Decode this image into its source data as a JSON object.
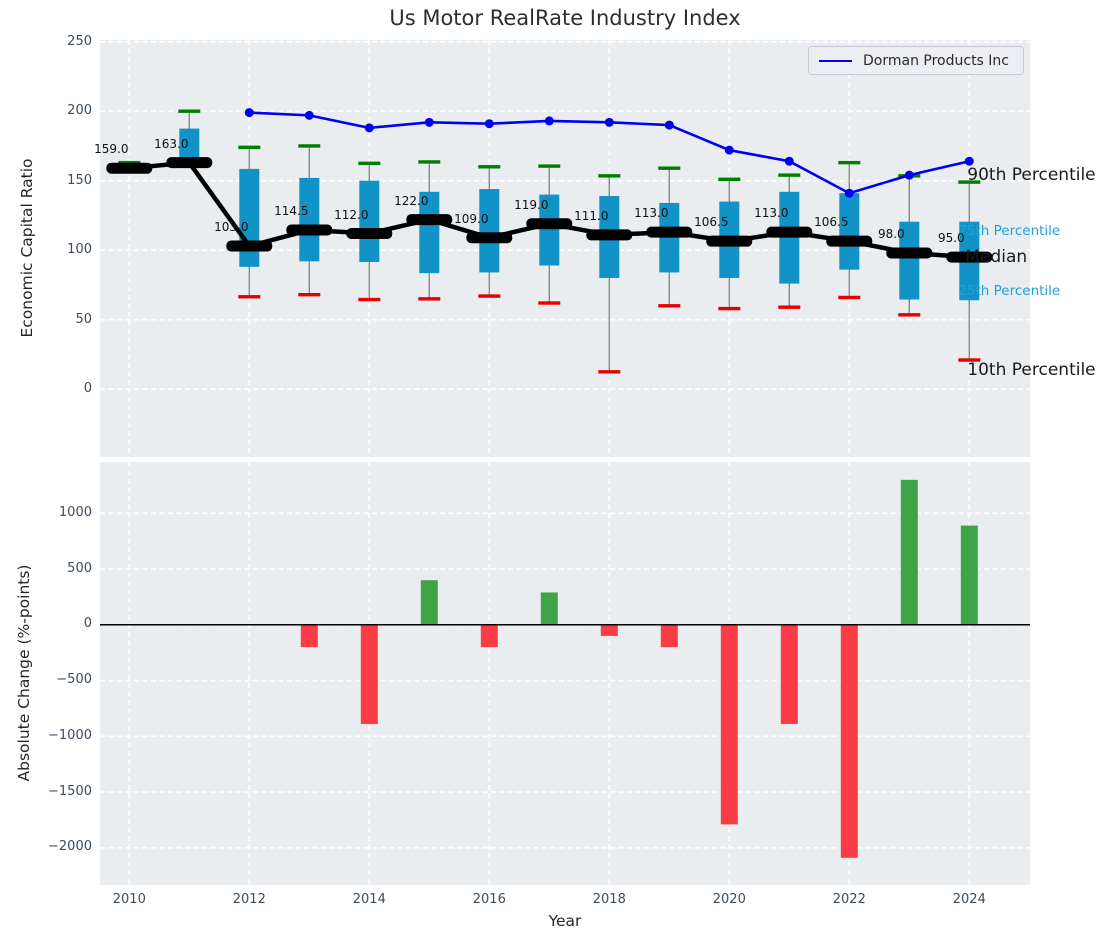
{
  "title": "Us Motor RealRate Industry Index",
  "top_chart": {
    "ylabel": "Economic Capital Ratio",
    "legend_label": "Dorman Products Inc",
    "annotations": {
      "p90": "90th Percentile",
      "p75": "75th Percentile",
      "median": "Median",
      "p25": "25th Percentile",
      "p10": "10th Percentile"
    },
    "yticks": [
      {
        "label": "250",
        "v": 250
      },
      {
        "label": "200",
        "v": 200
      },
      {
        "label": "150",
        "v": 150
      },
      {
        "label": "100",
        "v": 100
      },
      {
        "label": "50",
        "v": 50
      },
      {
        "label": "0",
        "v": 0
      }
    ]
  },
  "bottom_chart": {
    "ylabel": "Absolute Change (%-points)",
    "xlabel": "Year",
    "yticks": [
      {
        "label": "1000",
        "v": 1000
      },
      {
        "label": "500",
        "v": 500
      },
      {
        "label": "0",
        "v": 0
      },
      {
        "label": "−500",
        "v": -500
      },
      {
        "label": "−1000",
        "v": -1000
      },
      {
        "label": "−1500",
        "v": -1500
      },
      {
        "label": "−2000",
        "v": -2000
      }
    ],
    "xticks": [
      {
        "label": "2010",
        "v": 2010
      },
      {
        "label": "2012",
        "v": 2012
      },
      {
        "label": "2014",
        "v": 2014
      },
      {
        "label": "2016",
        "v": 2016
      },
      {
        "label": "2018",
        "v": 2018
      },
      {
        "label": "2020",
        "v": 2020
      },
      {
        "label": "2022",
        "v": 2022
      },
      {
        "label": "2024",
        "v": 2024
      }
    ]
  },
  "colors": {
    "plot_background": "#e9edf0",
    "box": "#1193c8",
    "cap_90th": "#007c00",
    "cap_10th": "#e60000",
    "whisker": "#8a8a8a",
    "median": "#000000",
    "company_line": "#0000f2",
    "bar_positive": "#3fa348",
    "bar_negative": "#fb3b45",
    "percentile_text": "#1ea2d8"
  },
  "chart_data": [
    {
      "type": "line",
      "title": "Us Motor RealRate Industry Index",
      "ylabel": "Economic Capital Ratio",
      "x": [
        2010,
        2011,
        2012,
        2013,
        2014,
        2015,
        2016,
        2017,
        2018,
        2019,
        2020,
        2021,
        2022,
        2023,
        2024
      ],
      "xlim": [
        2009.5,
        2025
      ],
      "ylim": [
        -50,
        252
      ],
      "grid": true,
      "legend_position": "upper right",
      "series": [
        {
          "name": "Median",
          "role": "median-line",
          "color": "#000000",
          "values": [
            159,
            163,
            103,
            114.5,
            112,
            122,
            109,
            119,
            111,
            113,
            106.5,
            113,
            106.5,
            98,
            95
          ]
        },
        {
          "name": "90th Percentile",
          "role": "whisker-cap-top",
          "color": "#007c00",
          "values": [
            163,
            200,
            174,
            175,
            162.5,
            163.5,
            160,
            160.5,
            153.5,
            159,
            151,
            154,
            163,
            153.5,
            149
          ]
        },
        {
          "name": "75th Percentile",
          "role": "box-top",
          "color": "#1193c8",
          "values": [
            160.5,
            187.5,
            158.5,
            152,
            150,
            142,
            144,
            140,
            139,
            134,
            135,
            142,
            141,
            120.5,
            120.5
          ]
        },
        {
          "name": "25th Percentile",
          "role": "box-bottom",
          "color": "#1193c8",
          "values": [
            156,
            162,
            88,
            92,
            91.5,
            83.5,
            84,
            89,
            80,
            84,
            80,
            76,
            86,
            64.5,
            64
          ]
        },
        {
          "name": "10th Percentile",
          "role": "whisker-cap-bottom",
          "color": "#e60000",
          "values": [
            157.5,
            162,
            66.5,
            68,
            64.5,
            65,
            67,
            62,
            12.5,
            60,
            58,
            59,
            66,
            53.5,
            21
          ]
        },
        {
          "name": "Dorman Products Inc",
          "role": "company-line",
          "color": "#0000f2",
          "values": [
            null,
            null,
            199,
            197,
            188,
            192,
            191,
            193,
            192,
            190,
            172,
            164,
            141,
            154,
            164
          ]
        }
      ],
      "median_labels": [
        "159.0",
        "163.0",
        "103.0",
        "114.5",
        "112.0",
        "122.0",
        "109.0",
        "119.0",
        "111.0",
        "113.0",
        "106.5",
        "113.0",
        "106.5",
        "98.0",
        "95.0"
      ]
    },
    {
      "type": "bar",
      "ylabel": "Absolute Change (%-points)",
      "xlabel": "Year",
      "x": [
        2010,
        2011,
        2012,
        2013,
        2014,
        2015,
        2016,
        2017,
        2018,
        2019,
        2020,
        2021,
        2022,
        2023,
        2024
      ],
      "values": [
        null,
        null,
        null,
        -200,
        -890,
        400,
        -200,
        290,
        -100,
        -200,
        -1790,
        -890,
        -2090,
        1300,
        890
      ],
      "positive_color": "#3fa348",
      "negative_color": "#fb3b45",
      "ylim": [
        -2300,
        1450
      ],
      "grid": true,
      "zero_line": true
    }
  ]
}
